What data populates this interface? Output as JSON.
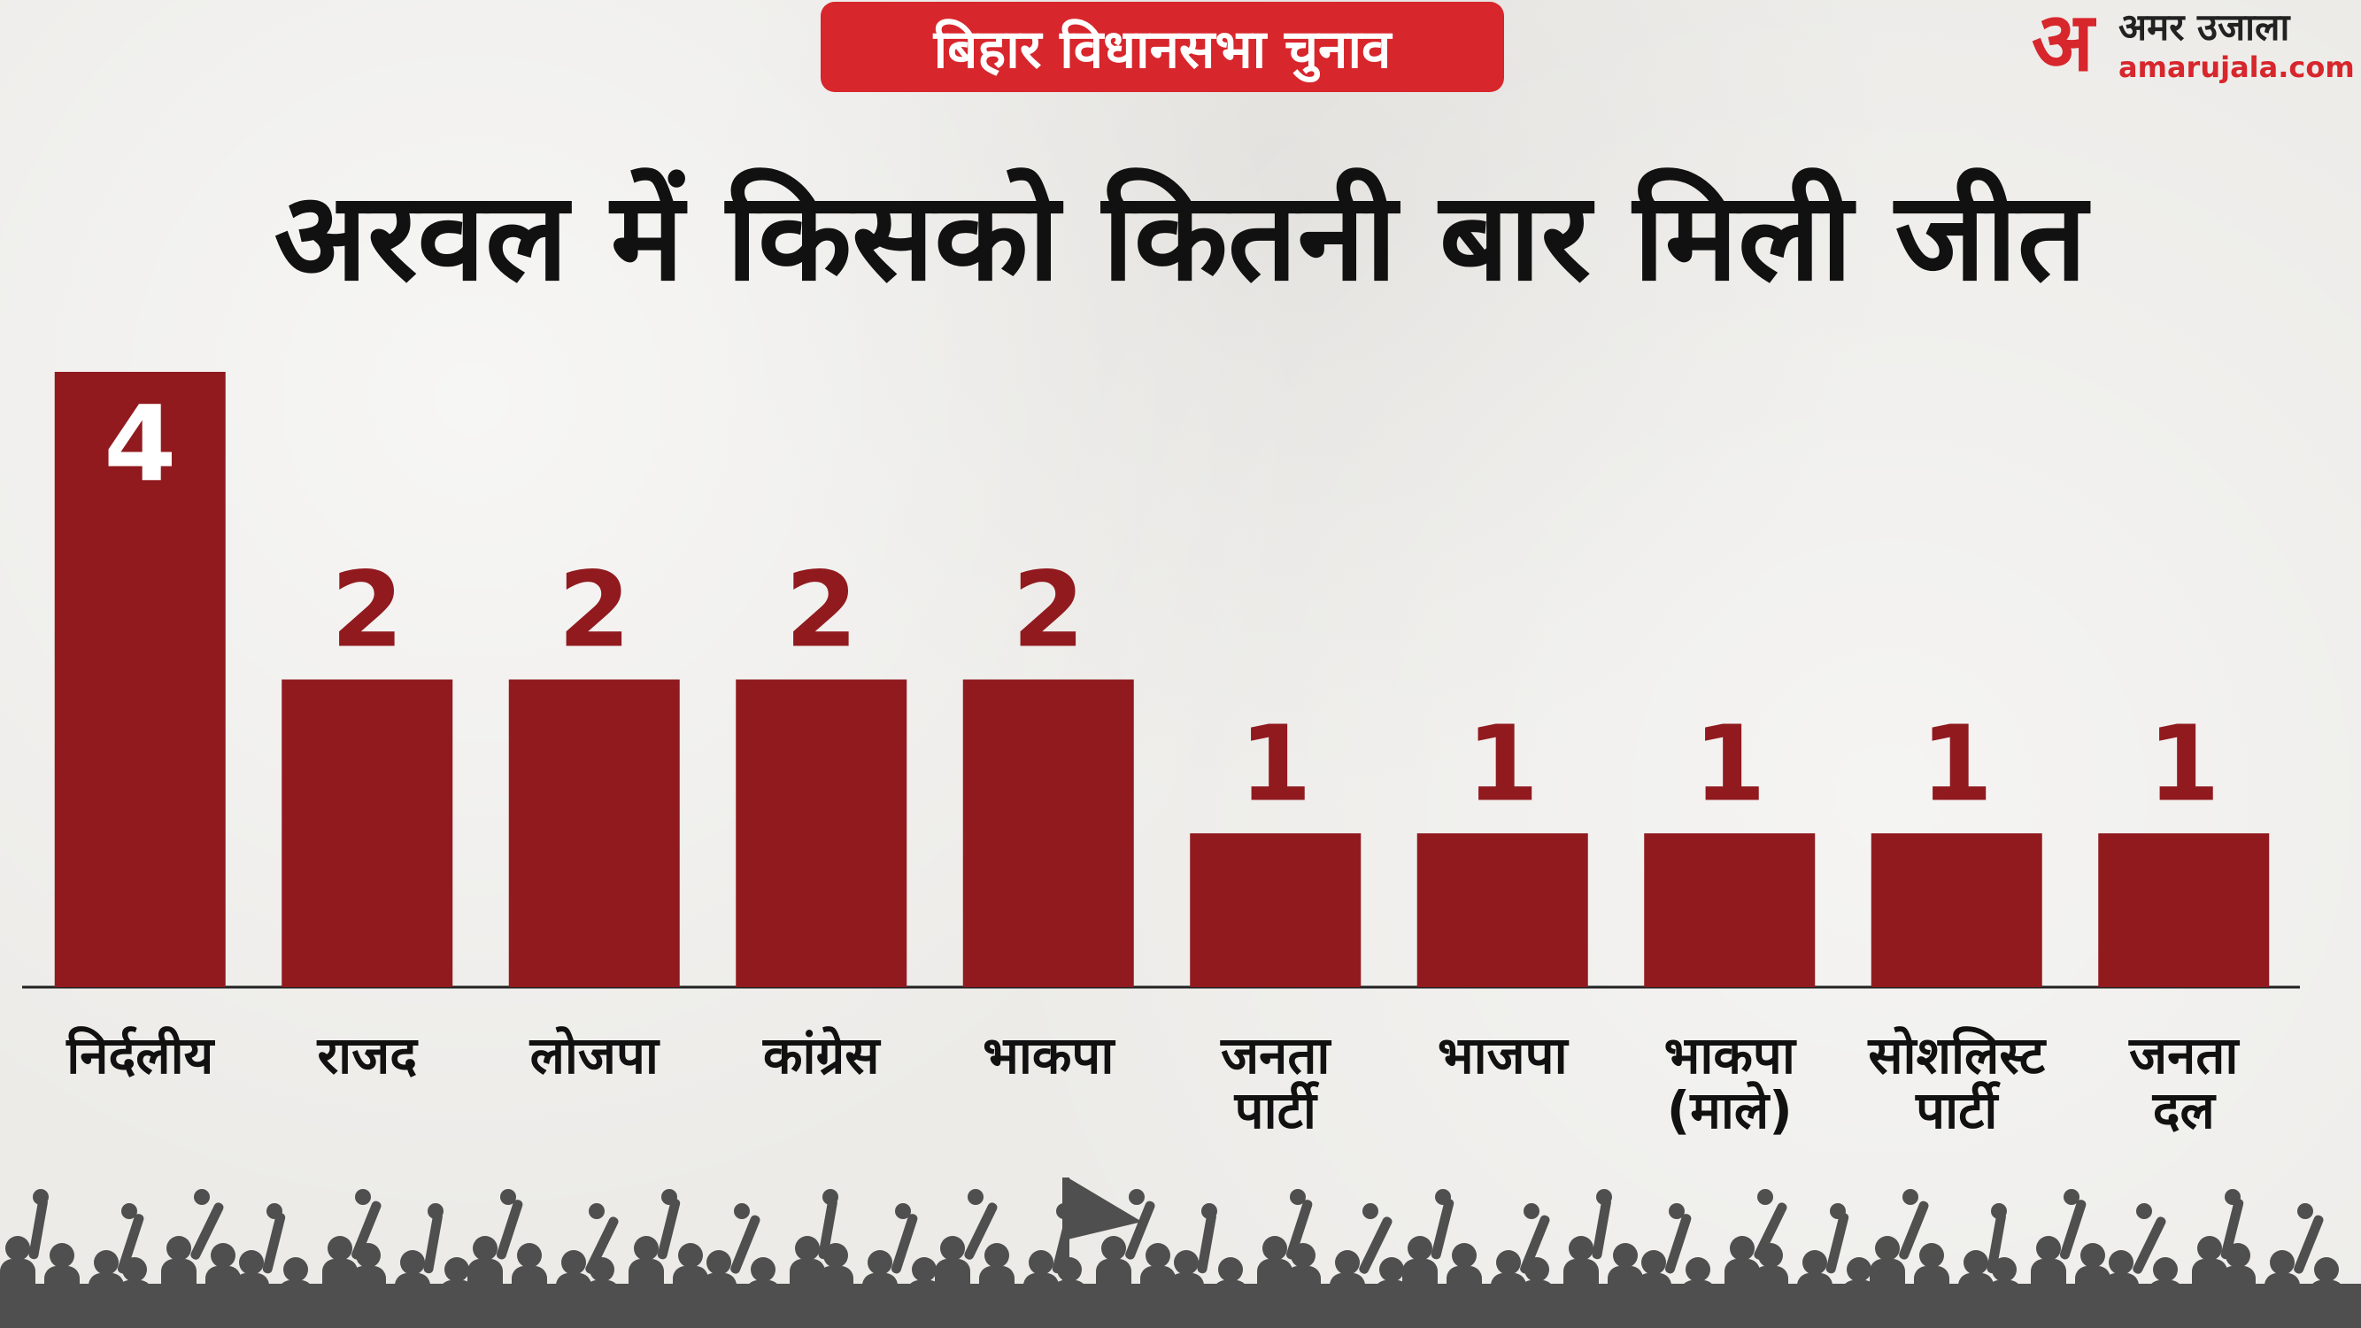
{
  "header": {
    "badge_text": "बिहार विधानसभा चुनाव",
    "logo_mark": "अ",
    "logo_name": "अमर उजाला",
    "logo_url": "amarujala.com"
  },
  "colors": {
    "accent": "#d7262c",
    "bar": "#911a1f",
    "title": "#111111"
  },
  "chart_data": {
    "type": "bar",
    "title": "अरवल में किसको कितनी बार मिली जीत",
    "categories": [
      [
        "निर्दलीय"
      ],
      [
        "राजद"
      ],
      [
        "लोजपा"
      ],
      [
        "कांग्रेस"
      ],
      [
        "भाकपा"
      ],
      [
        "जनता",
        "पार्टी"
      ],
      [
        "भाजपा"
      ],
      [
        "भाकपा",
        "(माले)"
      ],
      [
        "सोशलिस्ट",
        "पार्टी"
      ],
      [
        "जनता",
        "दल"
      ]
    ],
    "values": [
      4,
      2,
      2,
      2,
      2,
      1,
      1,
      1,
      1,
      1
    ],
    "data_labels": [
      "4",
      "2",
      "2",
      "2",
      "2",
      "1",
      "1",
      "1",
      "1",
      "1"
    ],
    "ylim": [
      0,
      4
    ],
    "grid": false,
    "legend": "none"
  }
}
